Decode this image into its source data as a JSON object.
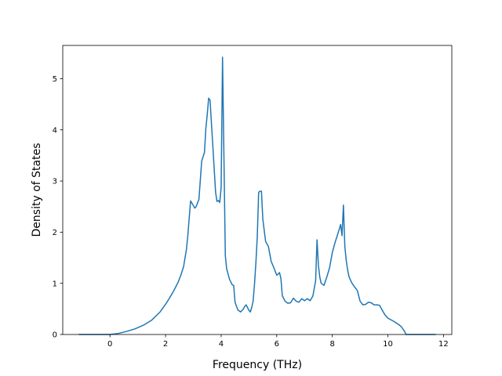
{
  "chart_data": {
    "type": "line",
    "title": "",
    "xlabel": "Frequency (THz)",
    "ylabel": "Density of States",
    "xlim": [
      -1.7,
      12.3
    ],
    "ylim": [
      0,
      5.65
    ],
    "xticks": [
      0,
      2,
      4,
      6,
      8,
      10,
      12
    ],
    "yticks": [
      0,
      1,
      2,
      3,
      4,
      5
    ],
    "grid": false,
    "series": [
      {
        "color": "#1f77b4",
        "x": [
          -1.1,
          -0.5,
          0.0,
          0.3,
          0.6,
          0.9,
          1.2,
          1.5,
          1.8,
          2.0,
          2.15,
          2.3,
          2.45,
          2.55,
          2.65,
          2.7,
          2.75,
          2.8,
          2.9,
          3.0,
          3.05,
          3.1,
          3.2,
          3.3,
          3.4,
          3.45,
          3.5,
          3.55,
          3.6,
          3.7,
          3.8,
          3.85,
          3.9,
          3.95,
          4.0,
          4.05,
          4.1,
          4.15,
          4.2,
          4.3,
          4.4,
          4.45,
          4.5,
          4.6,
          4.7,
          4.8,
          4.85,
          4.9,
          5.0,
          5.05,
          5.1,
          5.15,
          5.2,
          5.25,
          5.3,
          5.35,
          5.4,
          5.45,
          5.5,
          5.6,
          5.7,
          5.8,
          5.9,
          6.0,
          6.05,
          6.1,
          6.15,
          6.2,
          6.3,
          6.4,
          6.5,
          6.6,
          6.7,
          6.8,
          6.9,
          7.0,
          7.1,
          7.2,
          7.3,
          7.4,
          7.45,
          7.5,
          7.55,
          7.6,
          7.7,
          7.8,
          7.9,
          8.0,
          8.1,
          8.2,
          8.3,
          8.35,
          8.4,
          8.45,
          8.5,
          8.55,
          8.6,
          8.7,
          8.8,
          8.9,
          9.0,
          9.1,
          9.2,
          9.3,
          9.4,
          9.5,
          9.6,
          9.7,
          9.8,
          9.9,
          10.0,
          10.2,
          10.4,
          10.5,
          10.6,
          10.65,
          10.7,
          11.0,
          11.7
        ],
        "y": [
          0.0,
          0.0,
          0.0,
          0.02,
          0.06,
          0.11,
          0.18,
          0.28,
          0.44,
          0.59,
          0.72,
          0.86,
          1.02,
          1.16,
          1.33,
          1.5,
          1.66,
          1.93,
          2.61,
          2.52,
          2.47,
          2.5,
          2.64,
          3.39,
          3.56,
          4.03,
          4.3,
          4.62,
          4.58,
          3.69,
          2.78,
          2.6,
          2.62,
          2.58,
          2.88,
          5.42,
          3.48,
          1.54,
          1.28,
          1.08,
          0.97,
          0.96,
          0.63,
          0.48,
          0.44,
          0.5,
          0.55,
          0.58,
          0.47,
          0.44,
          0.53,
          0.65,
          0.98,
          1.4,
          1.91,
          2.78,
          2.8,
          2.8,
          2.25,
          1.82,
          1.72,
          1.43,
          1.3,
          1.16,
          1.18,
          1.21,
          1.1,
          0.76,
          0.65,
          0.61,
          0.62,
          0.71,
          0.65,
          0.63,
          0.7,
          0.66,
          0.7,
          0.66,
          0.75,
          1.05,
          1.85,
          1.35,
          1.12,
          1.0,
          0.96,
          1.12,
          1.3,
          1.6,
          1.8,
          1.97,
          2.15,
          1.93,
          2.53,
          1.73,
          1.45,
          1.27,
          1.13,
          1.01,
          0.93,
          0.86,
          0.65,
          0.58,
          0.59,
          0.63,
          0.62,
          0.58,
          0.58,
          0.57,
          0.47,
          0.38,
          0.32,
          0.26,
          0.19,
          0.14,
          0.06,
          0.0,
          0.0,
          0.0,
          0.0
        ]
      }
    ]
  }
}
